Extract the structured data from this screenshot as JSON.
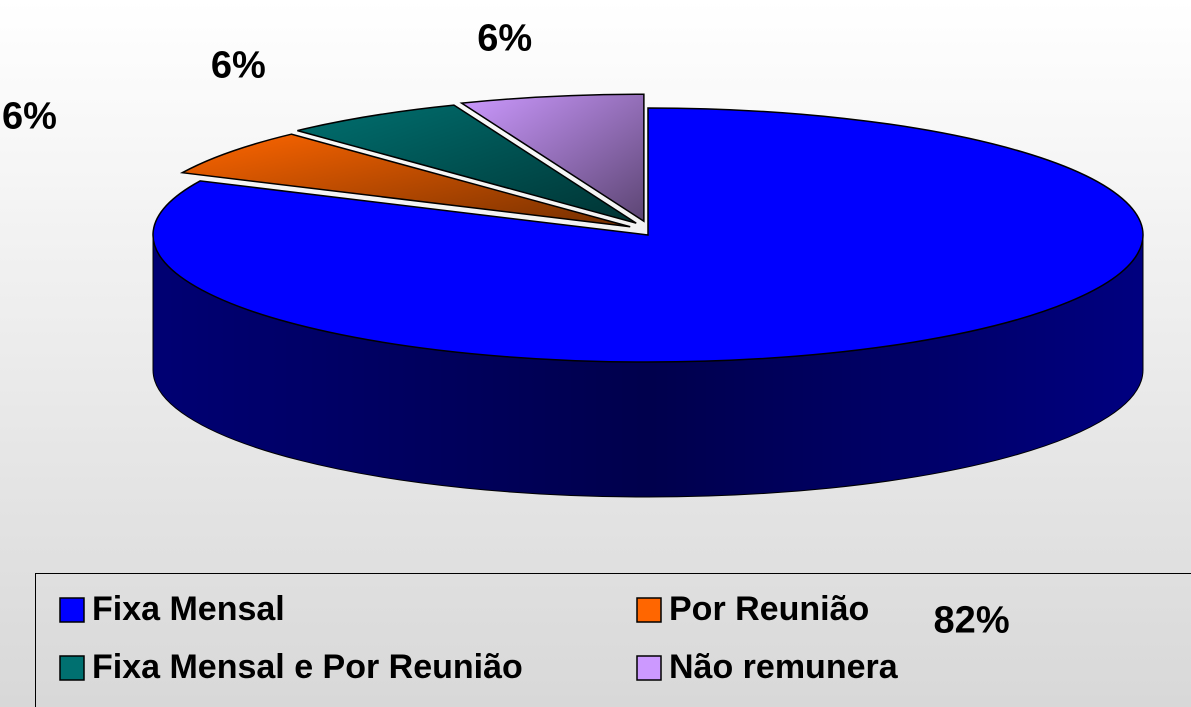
{
  "chart_data": {
    "type": "pie",
    "categories": [
      "Fixa Mensal",
      "Por Reunião",
      "Fixa Mensal e Por Reunião",
      "Não remunera"
    ],
    "values": [
      82,
      6,
      6,
      6
    ],
    "value_labels": [
      "82%",
      "6%",
      "6%",
      "6%"
    ],
    "colors": [
      "#0000ff",
      "#ff6600",
      "#007070",
      "#cc99ff"
    ],
    "legend": "bottom"
  }
}
